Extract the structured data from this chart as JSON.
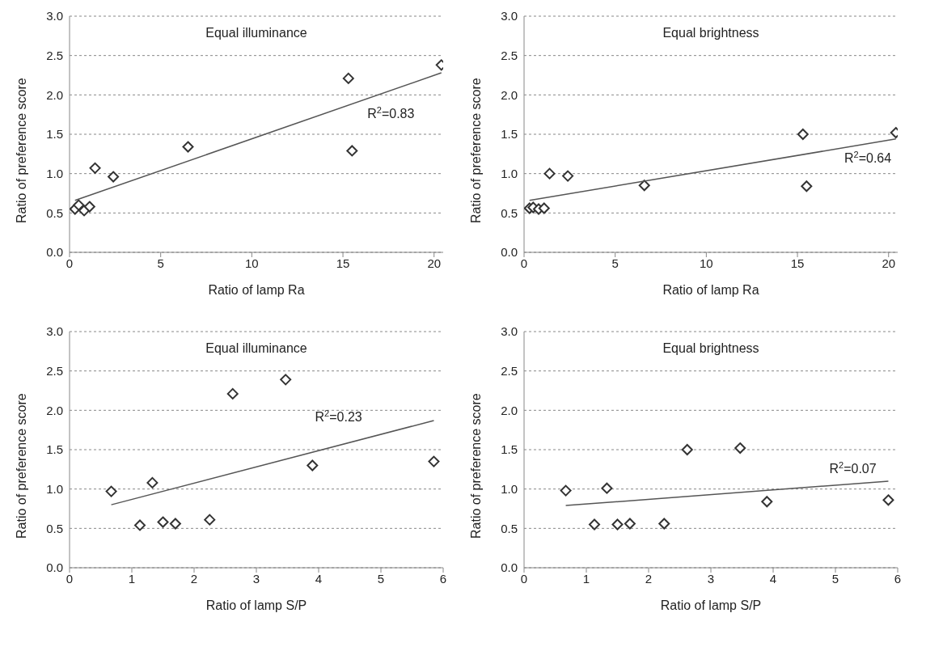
{
  "chart_data": [
    {
      "type": "scatter",
      "title": "Equal illuminance",
      "xlabel": "Ratio of lamp Ra",
      "ylabel": "Ratio of preference score",
      "xlim": [
        0,
        20.5
      ],
      "xticks": [
        0,
        5,
        10,
        15,
        20
      ],
      "ylim": [
        0,
        3
      ],
      "yticks": [
        {
          "value": 0,
          "label": "0.0"
        },
        {
          "value": 0.5,
          "label": "0.5"
        },
        {
          "value": 1,
          "label": "1.0"
        },
        {
          "value": 1.5,
          "label": "1.5"
        },
        {
          "value": 2,
          "label": "2.0"
        },
        {
          "value": 2.5,
          "label": "2.5"
        },
        {
          "value": 3,
          "label": "3.0"
        }
      ],
      "grid": "y",
      "series": [
        {
          "color": "#333333",
          "marker": "diamond",
          "x": [
            0.3,
            0.5,
            0.8,
            1.1,
            1.4,
            2.4,
            6.5,
            15.3,
            15.5,
            20.4
          ],
          "values": [
            0.55,
            0.6,
            0.53,
            0.58,
            1.07,
            0.96,
            1.34,
            2.21,
            1.29,
            2.38
          ]
        },
        {
          "type": "line",
          "color": "#555555",
          "marker": "none",
          "x": [
            0.3,
            20.4
          ],
          "values": [
            0.66,
            2.28
          ]
        }
      ],
      "annotations": [
        "R$^{2}$=0.83"
      ]
    },
    {
      "type": "scatter",
      "title": "Equal brightness",
      "xlabel": "Ratio of lamp Ra",
      "ylabel": "Ratio of preference score",
      "xlim": [
        0,
        20.5
      ],
      "xticks": [
        0,
        5,
        10,
        15,
        20
      ],
      "ylim": [
        0,
        3
      ],
      "yticks": [
        {
          "value": 0,
          "label": "0.0"
        },
        {
          "value": 0.5,
          "label": "0.5"
        },
        {
          "value": 1,
          "label": "1.0"
        },
        {
          "value": 1.5,
          "label": "1.5"
        },
        {
          "value": 2,
          "label": "2.0"
        },
        {
          "value": 2.5,
          "label": "2.5"
        },
        {
          "value": 3,
          "label": "3.0"
        }
      ],
      "grid": "y",
      "series": [
        {
          "color": "#333333",
          "marker": "diamond",
          "x": [
            0.3,
            0.5,
            0.8,
            1.1,
            1.4,
            2.4,
            6.6,
            15.3,
            15.5,
            20.4
          ],
          "values": [
            0.56,
            0.57,
            0.55,
            0.56,
            1.0,
            0.97,
            0.85,
            1.5,
            0.84,
            1.52
          ]
        },
        {
          "type": "line",
          "color": "#555555",
          "marker": "none",
          "x": [
            0.3,
            20.4
          ],
          "values": [
            0.66,
            1.44
          ]
        }
      ],
      "annotations": [
        "R$^{2}$=0.64"
      ]
    },
    {
      "type": "scatter",
      "title": "Equal illuminance",
      "xlabel": "Ratio of lamp S/P",
      "ylabel": "Ratio of preference score",
      "xlim": [
        0,
        6
      ],
      "xticks": [
        0,
        1,
        2,
        3,
        4,
        5,
        6
      ],
      "ylim": [
        0,
        3
      ],
      "yticks": [
        {
          "value": 0,
          "label": "0.0"
        },
        {
          "value": 0.5,
          "label": "0.5"
        },
        {
          "value": 1,
          "label": "1.0"
        },
        {
          "value": 1.5,
          "label": "1.5"
        },
        {
          "value": 2,
          "label": "2.0"
        },
        {
          "value": 2.5,
          "label": "2.5"
        },
        {
          "value": 3,
          "label": "3.0"
        }
      ],
      "grid": "y",
      "series": [
        {
          "color": "#333333",
          "marker": "diamond",
          "x": [
            0.67,
            1.13,
            1.33,
            1.5,
            1.7,
            2.25,
            2.62,
            3.47,
            3.9,
            5.85
          ],
          "values": [
            0.97,
            0.54,
            1.08,
            0.58,
            0.56,
            0.61,
            2.21,
            2.39,
            1.3,
            1.35
          ]
        },
        {
          "type": "line",
          "color": "#555555",
          "marker": "none",
          "x": [
            0.67,
            5.85
          ],
          "values": [
            0.8,
            1.87
          ]
        }
      ],
      "annotations": [
        "R$^{2}$=0.23"
      ]
    },
    {
      "type": "scatter",
      "title": "Equal brightness",
      "xlabel": "Ratio of lamp S/P",
      "ylabel": "Ratio of preference score",
      "xlim": [
        0,
        6
      ],
      "xticks": [
        0,
        1,
        2,
        3,
        4,
        5,
        6
      ],
      "ylim": [
        0,
        3
      ],
      "yticks": [
        {
          "value": 0,
          "label": "0.0"
        },
        {
          "value": 0.5,
          "label": "0.5"
        },
        {
          "value": 1,
          "label": "1.0"
        },
        {
          "value": 1.5,
          "label": "1.5"
        },
        {
          "value": 2,
          "label": "2.0"
        },
        {
          "value": 2.5,
          "label": "2.5"
        },
        {
          "value": 3,
          "label": "3.0"
        }
      ],
      "grid": "y",
      "series": [
        {
          "color": "#333333",
          "marker": "diamond",
          "x": [
            0.67,
            1.13,
            1.33,
            1.5,
            1.7,
            2.25,
            2.62,
            3.47,
            3.9,
            5.85
          ],
          "values": [
            0.98,
            0.55,
            1.01,
            0.55,
            0.56,
            0.56,
            1.5,
            1.52,
            0.84,
            0.86
          ]
        },
        {
          "type": "line",
          "color": "#555555",
          "marker": "none",
          "x": [
            0.67,
            5.85
          ],
          "values": [
            0.79,
            1.1
          ]
        }
      ],
      "annotations": [
        "R$^{2}$=0.07"
      ]
    }
  ]
}
